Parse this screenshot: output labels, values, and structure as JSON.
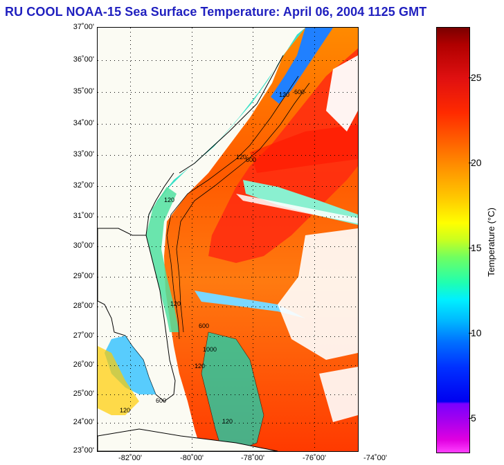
{
  "title": "RU COOL  NOAA-15  Sea Surface Temperature:  April 06, 2004 1125 GMT",
  "latitude_labels": [
    "37˚00'",
    "36˚00'",
    "35˚00'",
    "34˚00'",
    "33˚00'",
    "32˚00'",
    "31˚00'",
    "30˚00'",
    "29˚00'",
    "28˚00'",
    "27˚00'",
    "26˚00'",
    "25˚00'",
    "24˚00'",
    "23˚00'"
  ],
  "longitude_labels": [
    "-82˚00'",
    "-80˚00'",
    "-78˚00'",
    "-76˚00'",
    "-74˚00'"
  ],
  "isobath_labels": [
    "120",
    "600",
    "1000"
  ],
  "colorbar": {
    "label": "Temperature (°C)",
    "ticks": [
      "25",
      "20",
      "15",
      "10",
      "5"
    ],
    "range": [
      3,
      28
    ]
  },
  "colors": {
    "title": "#1f1fbf",
    "land": "#fbfbf3",
    "coastline": "#000000"
  }
}
